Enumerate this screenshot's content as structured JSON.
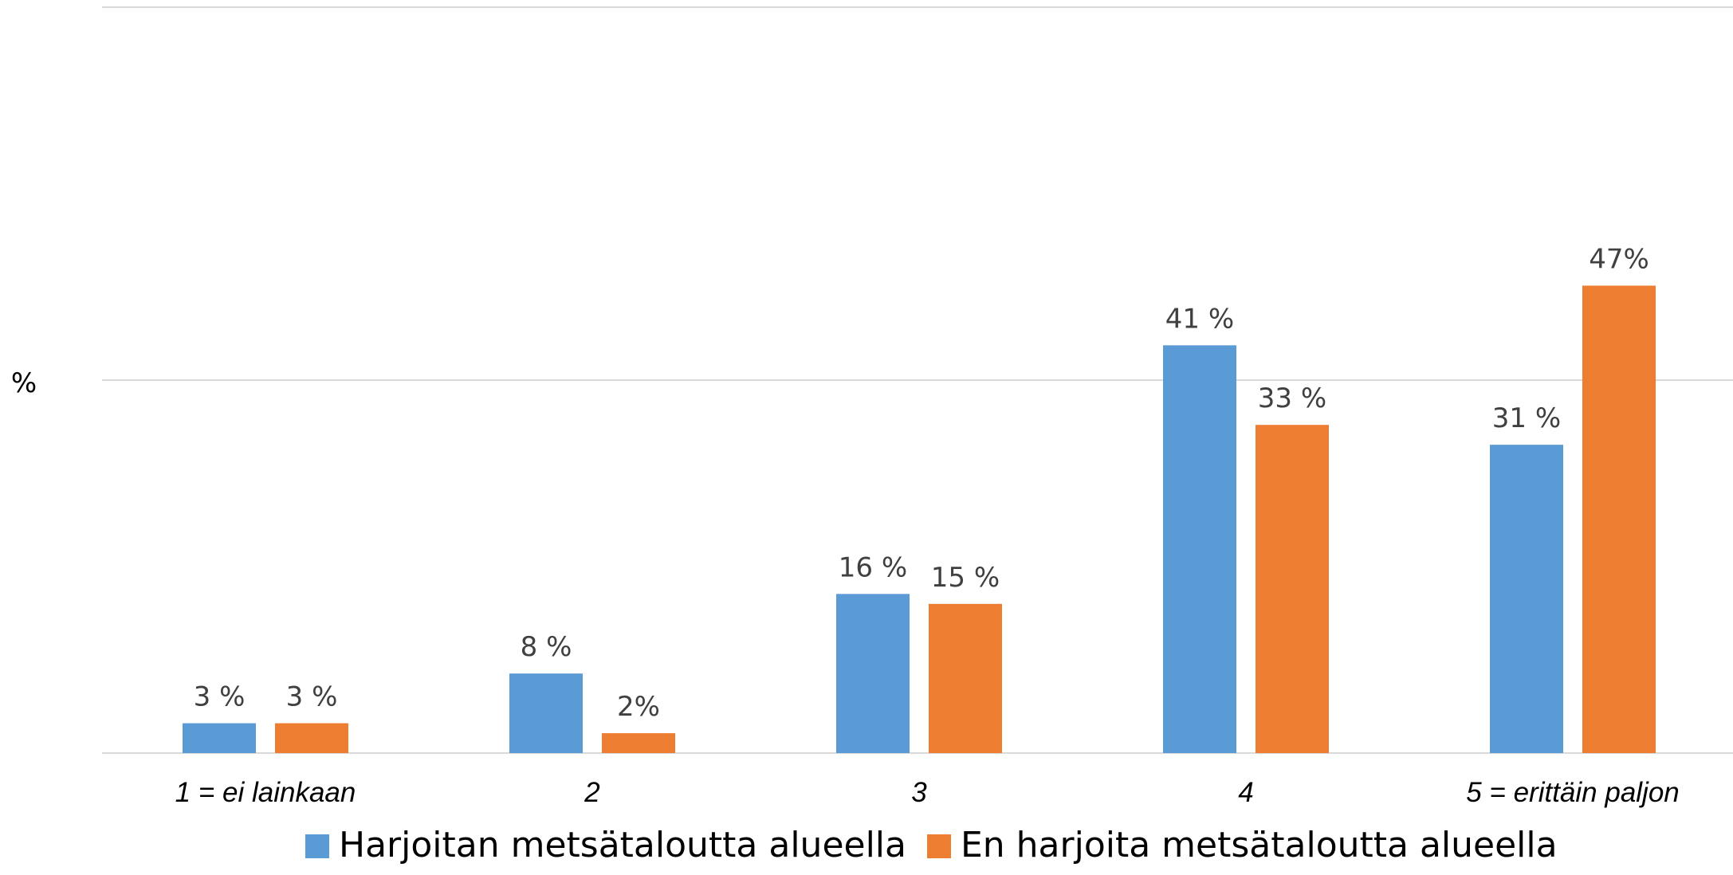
{
  "chart_data": {
    "type": "bar",
    "title": "",
    "xlabel": "",
    "ylabel": "%",
    "ylim": [
      0,
      75
    ],
    "grid": true,
    "legend_position": "bottom",
    "categories": [
      "1 = ei lainkaan",
      "2",
      "3",
      "4",
      "5 = erittäin paljon"
    ],
    "series": [
      {
        "name": "Harjoitan metsätaloutta alueella",
        "color": "#5B9BD5",
        "values": [
          3,
          8,
          16,
          41,
          31
        ],
        "labels": [
          "3 %",
          "8 %",
          "16 %",
          "41 %",
          "31 %"
        ]
      },
      {
        "name": "En harjoita metsätaloutta alueella",
        "color": "#ED7D31",
        "values": [
          3,
          2,
          15,
          33,
          47
        ],
        "labels": [
          "3 %",
          "2%",
          "15 %",
          "33 %",
          "47%"
        ]
      }
    ]
  }
}
